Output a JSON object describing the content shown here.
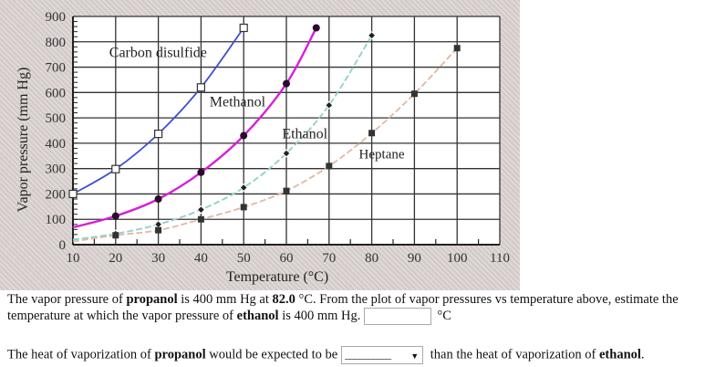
{
  "chart_data": {
    "type": "line",
    "title": "",
    "xlabel": "Temperature (°C)",
    "ylabel": "Vapor pressure (mm Hg)",
    "xlim": [
      10,
      110
    ],
    "ylim": [
      0,
      900
    ],
    "x_ticks": [
      10,
      20,
      30,
      40,
      50,
      60,
      70,
      80,
      90,
      100,
      110
    ],
    "y_ticks": [
      0,
      100,
      200,
      300,
      400,
      500,
      600,
      700,
      800,
      900
    ],
    "grid": true,
    "legend": "inline labels",
    "series": [
      {
        "name": "Carbon disulfide",
        "color": "#3a4fd0",
        "marker": "open-square",
        "x": [
          10,
          20,
          30,
          40,
          50
        ],
        "y": [
          200,
          298,
          437,
          620,
          855
        ]
      },
      {
        "name": "Methanol",
        "color": "#d81ed8",
        "marker": "filled-circle",
        "x": [
          10,
          20,
          30,
          40,
          50,
          60,
          67
        ],
        "y": [
          68,
          113,
          180,
          285,
          430,
          635,
          855
        ]
      },
      {
        "name": "Ethanol",
        "color": "#8fd0c8",
        "marker": "diamond",
        "dashed": true,
        "x": [
          10,
          20,
          30,
          40,
          50,
          60,
          70,
          80
        ],
        "y": [
          20,
          43,
          80,
          138,
          225,
          360,
          550,
          825
        ]
      },
      {
        "name": "Heptane",
        "color": "#e0b8a4",
        "marker": "filled-square",
        "dashed": true,
        "x": [
          10,
          20,
          30,
          40,
          50,
          60,
          70,
          80,
          90,
          100
        ],
        "y": [
          12,
          37,
          57,
          100,
          148,
          212,
          310,
          440,
          595,
          775
        ]
      }
    ],
    "annotations": [
      {
        "text": "Carbon disulfide",
        "x": 18.5,
        "y": 740
      },
      {
        "text": "Methanol",
        "x": 42,
        "y": 545
      },
      {
        "text": "Ethanol",
        "x": 59,
        "y": 420
      },
      {
        "text": "Heptane",
        "x": 77,
        "y": 340
      }
    ]
  },
  "question1": {
    "part1": "The vapor pressure of ",
    "bold1": "propanol",
    "part2": " is 400 mm Hg at ",
    "bold2": "82.0",
    "part3": " °C. From the plot of vapor pressures vs temperature above, estimate the temperature at which the vapor pressure of ",
    "bold3": "ethanol",
    "part4": " is 400 mm Hg.",
    "input_value": "",
    "unit": "°C"
  },
  "question2": {
    "part1": "The heat of vaporization of ",
    "bold1": "propanol",
    "part2": " would be expected to be",
    "select_value": "__________",
    "part3": " than the heat of vaporization of ",
    "bold2": "ethanol",
    "part4": "."
  }
}
